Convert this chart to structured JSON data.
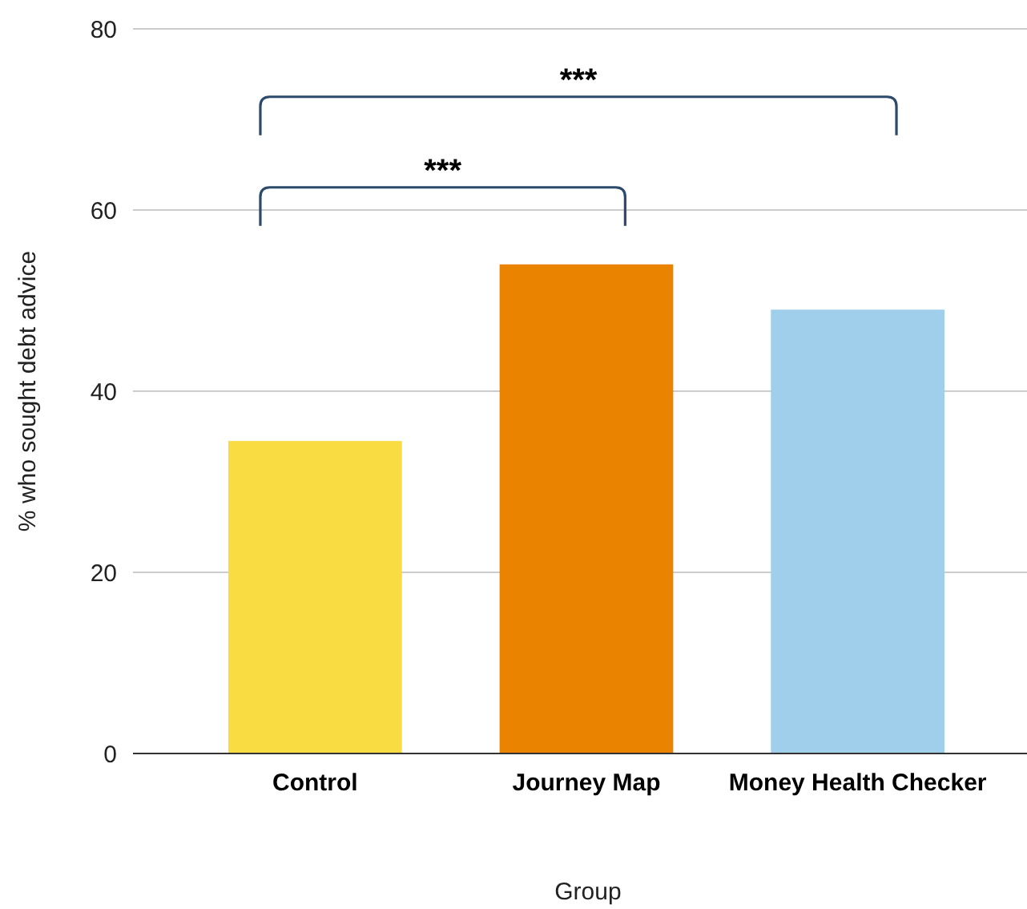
{
  "chart_data": {
    "type": "bar",
    "xlabel": "Group",
    "ylabel": "% who sought debt advice",
    "categories": [
      "Control",
      "Journey Map",
      "Money Health Checker"
    ],
    "values": [
      34.5,
      54,
      49
    ],
    "colors": [
      "#f9db42",
      "#e98300",
      "#a0cfec"
    ],
    "ylim": [
      0,
      80
    ],
    "yticks": [
      0,
      20,
      40,
      60,
      80
    ],
    "grid": "y",
    "annotations": [
      "***",
      "***"
    ]
  }
}
